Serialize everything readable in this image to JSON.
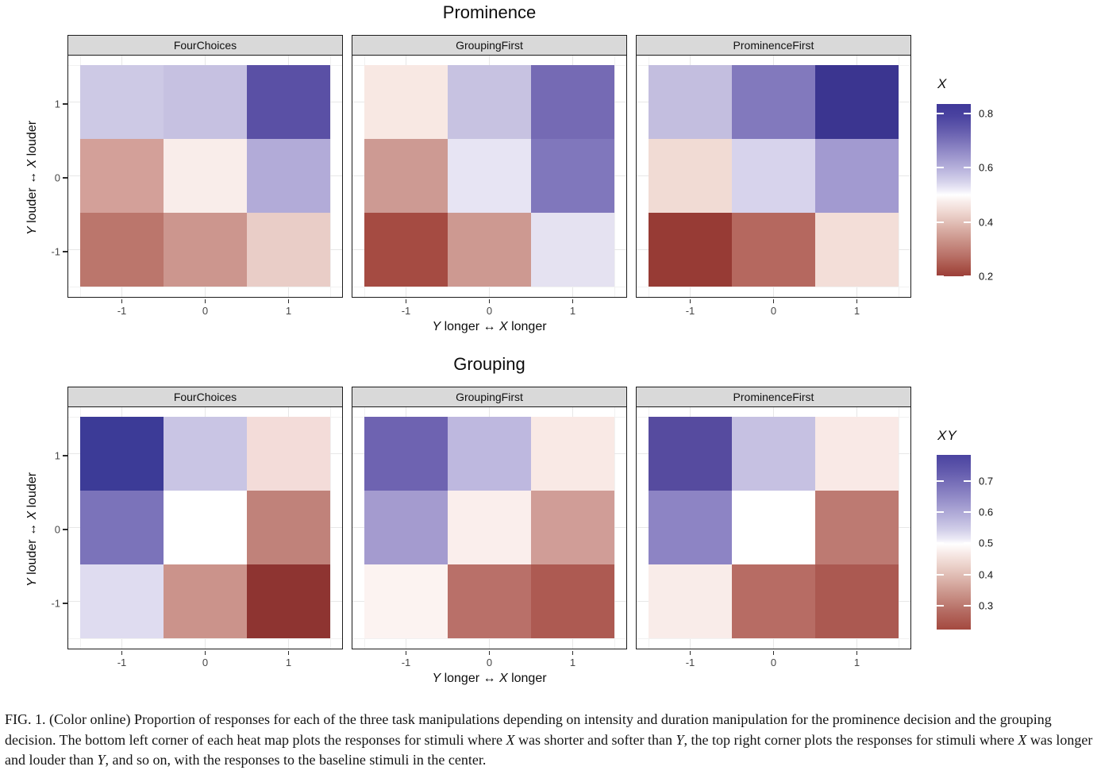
{
  "figure_titles": [
    "Prominence",
    "Grouping"
  ],
  "axis": {
    "x_ticks": [
      "-1",
      "0",
      "1"
    ],
    "y_ticks": [
      "1",
      "0",
      "-1"
    ],
    "x_label_segments": [
      {
        "t": "Y",
        "i": true
      },
      {
        "t": " longer ",
        "i": false
      },
      {
        "t": "↔",
        "i": false
      },
      {
        "t": "  ",
        "i": false
      },
      {
        "t": "X",
        "i": true
      },
      {
        "t": " longer",
        "i": false
      }
    ],
    "y_label_segments": [
      {
        "t": "Y",
        "i": true
      },
      {
        "t": " louder ",
        "i": false
      },
      {
        "t": "↔",
        "i": false
      },
      {
        "t": "  ",
        "i": false
      },
      {
        "t": "X",
        "i": true
      },
      {
        "t": " louder",
        "i": false
      }
    ]
  },
  "caption_segments": [
    {
      "t": "FIG. 1. (Color online) Proportion of responses for each of the three task manipulations depending on intensity and duration manipulation for the prominence decision and the grouping decision. The bottom left corner of each heat map plots the responses for stimuli where ",
      "i": false
    },
    {
      "t": "X",
      "i": true
    },
    {
      "t": " was shorter and softer than ",
      "i": false
    },
    {
      "t": "Y",
      "i": true
    },
    {
      "t": ", the top right corner plots the responses for stimuli where ",
      "i": false
    },
    {
      "t": "X",
      "i": true
    },
    {
      "t": " was longer and louder than ",
      "i": false
    },
    {
      "t": "Y",
      "i": true
    },
    {
      "t": ", and so on, with the responses to the baseline stimuli in the center.",
      "i": false
    }
  ],
  "chart_data": [
    {
      "type": "heatmap",
      "title": "Prominence",
      "xlabel": "Y longer ↔ X longer",
      "ylabel": "Y louder ↔ X louder",
      "x": [
        -1,
        0,
        1
      ],
      "y_top_to_bottom": [
        1,
        0,
        -1
      ],
      "legend_title": "X",
      "colorbar_ticks": [
        0.8,
        0.6,
        0.4,
        0.2
      ],
      "colorbar_range": [
        0.2,
        0.835
      ],
      "panels": [
        {
          "name": "FourChoices",
          "values": [
            [
              0.61,
              0.62,
              0.78
            ],
            [
              0.41,
              0.48,
              0.66
            ],
            [
              0.34,
              0.4,
              0.45
            ]
          ],
          "colors": [
            [
              "#cdc9e5",
              "#c6c1e1",
              "#5a50a5"
            ],
            [
              "#d3a099",
              "#f9edea",
              "#b2abd8"
            ],
            [
              "#bb766c",
              "#cc968e",
              "#e9cdc7"
            ]
          ]
        },
        {
          "name": "GroupingFirst",
          "values": [
            [
              0.47,
              0.62,
              0.73
            ],
            [
              0.4,
              0.55,
              0.71
            ],
            [
              0.27,
              0.4,
              0.55
            ]
          ],
          "colors": [
            [
              "#f8e8e3",
              "#c7c2e1",
              "#756ab4"
            ],
            [
              "#cd9a93",
              "#e7e4f3",
              "#8077bc"
            ],
            [
              "#a54b42",
              "#cd9991",
              "#e5e2f1"
            ]
          ]
        },
        {
          "name": "ProminenceFirst",
          "values": [
            [
              0.62,
              0.71,
              0.83
            ],
            [
              0.45,
              0.58,
              0.67
            ],
            [
              0.21,
              0.33,
              0.46
            ]
          ],
          "colors": [
            [
              "#c3bedf",
              "#8279bd",
              "#3b3590"
            ],
            [
              "#f1dbd4",
              "#d7d3ec",
              "#a29ad0"
            ],
            [
              "#973b35",
              "#b5685f",
              "#f3ded8"
            ]
          ]
        }
      ]
    },
    {
      "type": "heatmap",
      "title": "Grouping",
      "xlabel": "Y longer ↔ X longer",
      "ylabel": "Y louder ↔ X louder",
      "x": [
        -1,
        0,
        1
      ],
      "y_top_to_bottom": [
        1,
        0,
        -1
      ],
      "legend_title": "XY",
      "colorbar_ticks": [
        0.7,
        0.6,
        0.5,
        0.4,
        0.3
      ],
      "colorbar_range": [
        0.224,
        0.783
      ],
      "panels": [
        {
          "name": "FourChoices",
          "values": [
            [
              0.75,
              0.6,
              0.46
            ],
            [
              0.68,
              0.5,
              0.38
            ],
            [
              0.56,
              0.4,
              0.24
            ]
          ],
          "colors": [
            [
              "#3c3b97",
              "#c9c5e4",
              "#f3dcd9"
            ],
            [
              "#7b73ba",
              "#ffffff",
              "#c0827a"
            ],
            [
              "#dfdcf0",
              "#cb938b",
              "#8e3431"
            ]
          ]
        },
        {
          "name": "GroupingFirst",
          "values": [
            [
              0.7,
              0.62,
              0.48
            ],
            [
              0.64,
              0.49,
              0.41
            ],
            [
              0.49,
              0.35,
              0.31
            ]
          ],
          "colors": [
            [
              "#6e63b1",
              "#beb8df",
              "#f9e9e5"
            ],
            [
              "#a49bcf",
              "#faeeec",
              "#d09d97"
            ],
            [
              "#fcf3f1",
              "#b97069",
              "#ad5a52"
            ]
          ]
        },
        {
          "name": "ProminenceFirst",
          "values": [
            [
              0.72,
              0.61,
              0.48
            ],
            [
              0.66,
              0.5,
              0.37
            ],
            [
              0.48,
              0.35,
              0.31
            ]
          ],
          "colors": [
            [
              "#564b9f",
              "#c6c1e2",
              "#f9e9e6"
            ],
            [
              "#8d84c4",
              "#ffffff",
              "#bd7a72"
            ],
            [
              "#f9ece9",
              "#b76c64",
              "#ab5951"
            ]
          ]
        }
      ]
    }
  ]
}
